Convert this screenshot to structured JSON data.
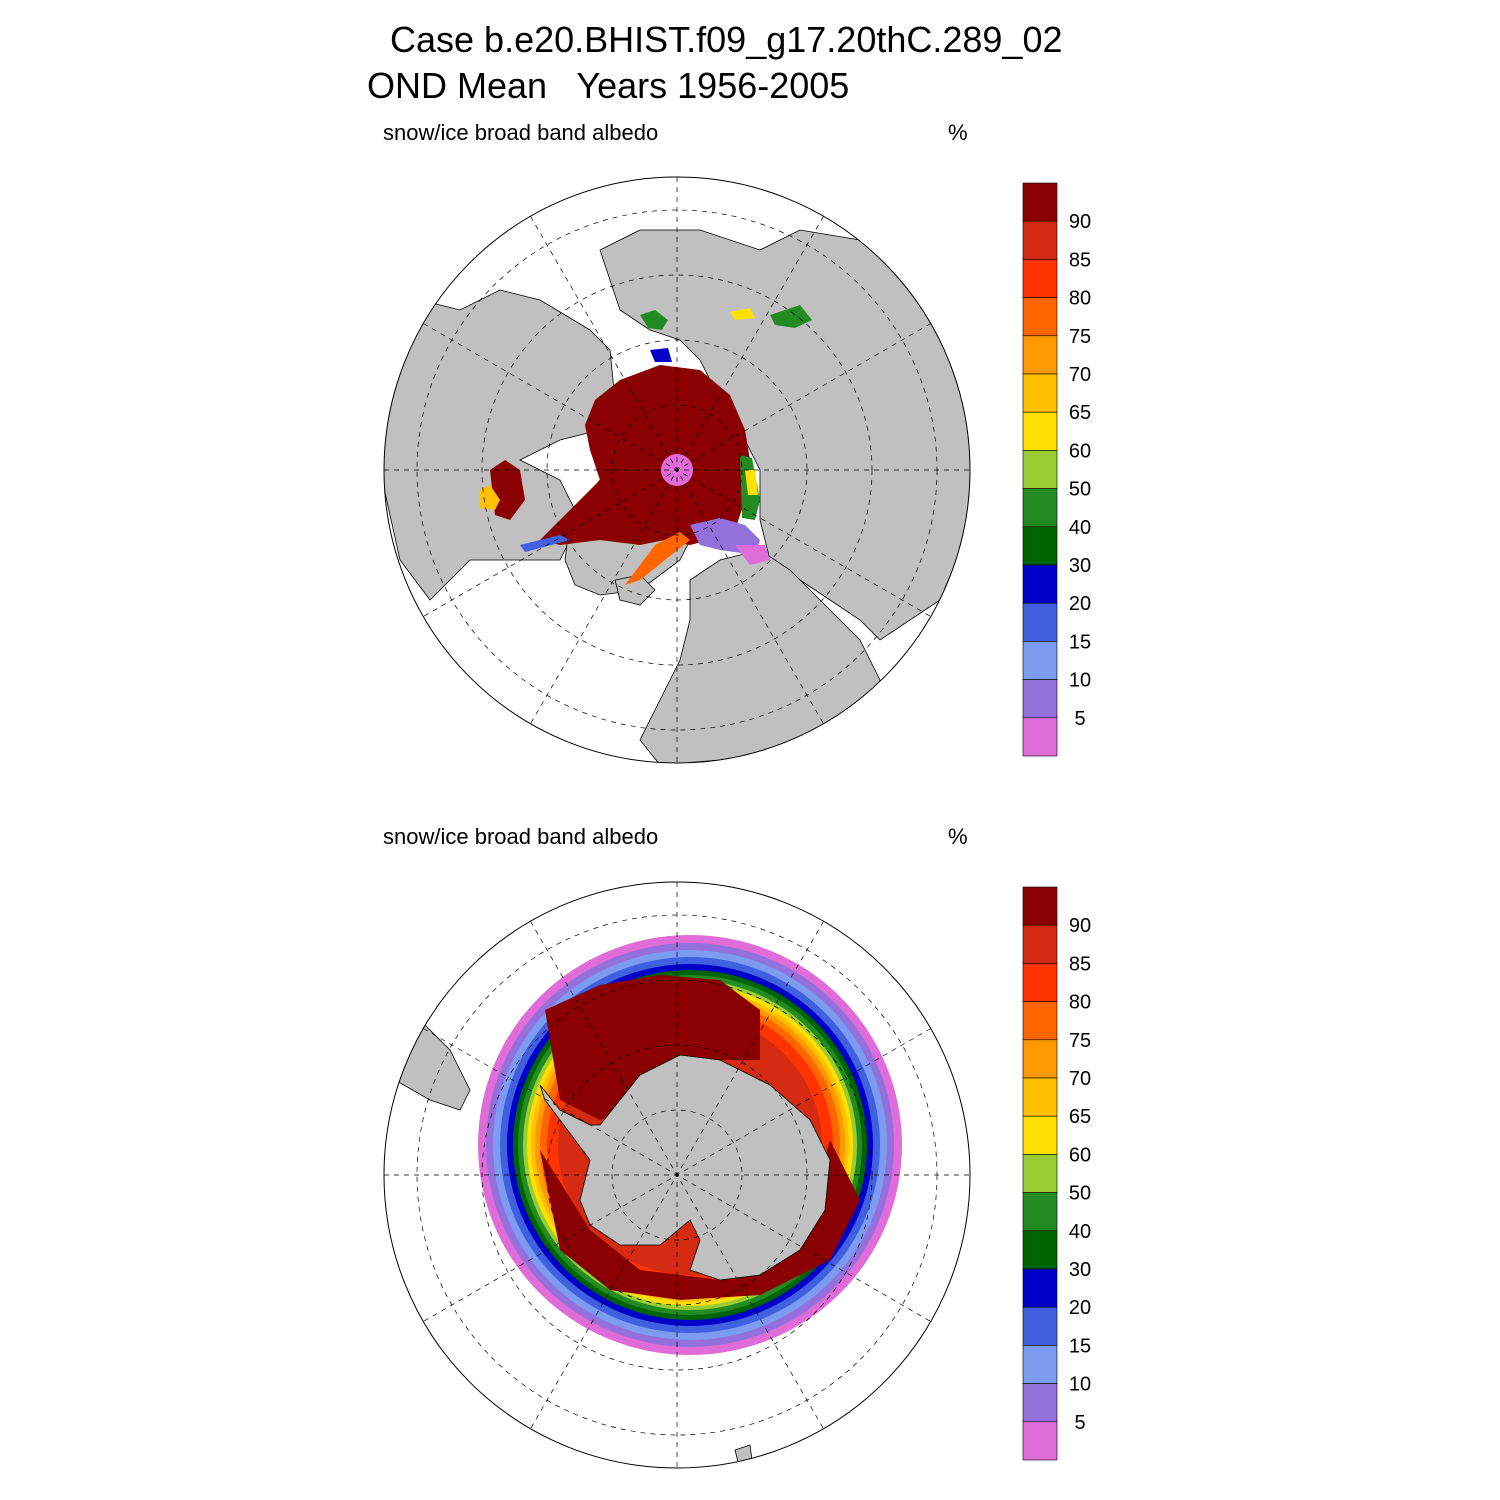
{
  "title": {
    "line1": "Case b.e20.BHIST.f09_g17.20thC.289_02",
    "line2": "OND Mean   Years 1956-2005"
  },
  "panels": [
    {
      "id": "north",
      "variable": "snow/ice broad band albedo",
      "units": "%",
      "hemisphere": "Northern"
    },
    {
      "id": "south",
      "variable": "snow/ice broad band albedo",
      "units": "%",
      "hemisphere": "Southern"
    }
  ],
  "colorbar": {
    "levels": [
      "5",
      "10",
      "15",
      "20",
      "30",
      "40",
      "50",
      "60",
      "65",
      "70",
      "75",
      "80",
      "85",
      "90"
    ],
    "colors": [
      "#e06cd9",
      "#9370db",
      "#7b9cf0",
      "#4060e0",
      "#0000c8",
      "#006400",
      "#228b22",
      "#9acd32",
      "#ffe000",
      "#ffc000",
      "#ff9900",
      "#ff6600",
      "#ff3300",
      "#d42b12",
      "#8b0000"
    ]
  },
  "map_colors": {
    "land": "#c0c0c0",
    "ocean": "#ffffff",
    "ice_core": "#8b0000"
  }
}
